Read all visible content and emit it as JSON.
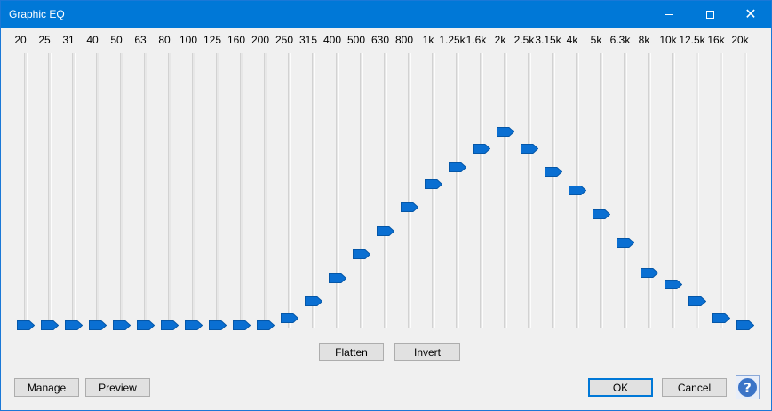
{
  "window": {
    "title": "Graphic EQ"
  },
  "titlebar_icons": [
    "minimize-icon",
    "maximize-icon",
    "close-icon"
  ],
  "bands": [
    {
      "freq": "20",
      "level": 0.0
    },
    {
      "freq": "25",
      "level": 0.0
    },
    {
      "freq": "31",
      "level": 0.0
    },
    {
      "freq": "40",
      "level": 0.0
    },
    {
      "freq": "50",
      "level": 0.0
    },
    {
      "freq": "63",
      "level": 0.0
    },
    {
      "freq": "80",
      "level": 0.0
    },
    {
      "freq": "100",
      "level": 0.0
    },
    {
      "freq": "125",
      "level": 0.0
    },
    {
      "freq": "160",
      "level": 0.0
    },
    {
      "freq": "200",
      "level": 0.0
    },
    {
      "freq": "250",
      "level": 0.03
    },
    {
      "freq": "315",
      "level": 0.1
    },
    {
      "freq": "400",
      "level": 0.2
    },
    {
      "freq": "500",
      "level": 0.3
    },
    {
      "freq": "630",
      "level": 0.4
    },
    {
      "freq": "800",
      "level": 0.5
    },
    {
      "freq": "1k",
      "level": 0.6
    },
    {
      "freq": "1.25k",
      "level": 0.67
    },
    {
      "freq": "1.6k",
      "level": 0.75
    },
    {
      "freq": "2k",
      "level": 0.82
    },
    {
      "freq": "2.5k",
      "level": 0.75
    },
    {
      "freq": "3.15k",
      "level": 0.65
    },
    {
      "freq": "4k",
      "level": 0.57
    },
    {
      "freq": "5k",
      "level": 0.47
    },
    {
      "freq": "6.3k",
      "level": 0.35
    },
    {
      "freq": "8k",
      "level": 0.22
    },
    {
      "freq": "10k",
      "level": 0.17
    },
    {
      "freq": "12.5k",
      "level": 0.1
    },
    {
      "freq": "16k",
      "level": 0.03
    },
    {
      "freq": "20k",
      "level": 0.0
    }
  ],
  "buttons": {
    "flatten": "Flatten",
    "invert": "Invert",
    "manage": "Manage",
    "preview": "Preview",
    "ok": "OK",
    "cancel": "Cancel",
    "help": "?"
  },
  "colors": {
    "accent": "#0078d7",
    "thumb": "#0a6fd2"
  }
}
